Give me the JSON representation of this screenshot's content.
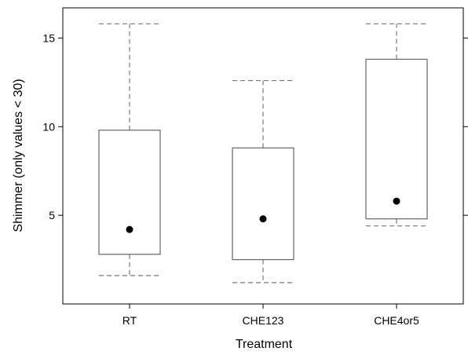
{
  "chart_data": {
    "type": "box",
    "title": "",
    "xlabel": "Treatment",
    "ylabel": "Shimmer (only values < 30)",
    "categories": [
      "RT",
      "CHE123",
      "CHE4or5"
    ],
    "ylim": [
      0,
      16.7
    ],
    "yticks": [
      5,
      10,
      15
    ],
    "grid": false,
    "boxes": [
      {
        "category": "RT",
        "whisker_low": 1.6,
        "q1": 2.8,
        "median": 4.2,
        "q3": 9.8,
        "whisker_high": 15.8
      },
      {
        "category": "CHE123",
        "whisker_low": 1.2,
        "q1": 2.5,
        "median": 4.8,
        "q3": 8.8,
        "whisker_high": 12.6
      },
      {
        "category": "CHE4or5",
        "whisker_low": 4.4,
        "q1": 4.8,
        "median": 5.8,
        "q3": 13.8,
        "whisker_high": 15.8
      }
    ],
    "colors": {
      "box_stroke": "#666666",
      "whisker": "#777777",
      "median_point": "#000000",
      "frame": "#000000"
    }
  }
}
